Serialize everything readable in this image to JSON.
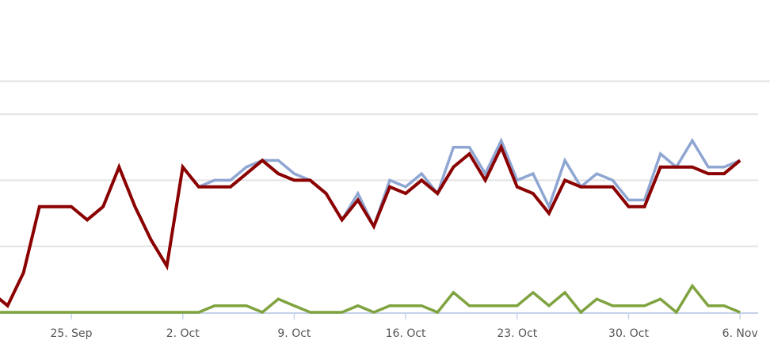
{
  "chart_data": {
    "type": "line",
    "title": "",
    "xlabel": "",
    "ylabel": "",
    "x": [
      "Sep 20",
      "Sep 21",
      "Sep 22",
      "Sep 23",
      "Sep 24",
      "Sep 25",
      "Sep 26",
      "Sep 27",
      "Sep 28",
      "Sep 29",
      "Sep 30",
      "Oct 1",
      "Oct 2",
      "Oct 3",
      "Oct 4",
      "Oct 5",
      "Oct 6",
      "Oct 7",
      "Oct 8",
      "Oct 9",
      "Oct 10",
      "Oct 11",
      "Oct 12",
      "Oct 13",
      "Oct 14",
      "Oct 15",
      "Oct 16",
      "Oct 17",
      "Oct 18",
      "Oct 19",
      "Oct 20",
      "Oct 21",
      "Oct 22",
      "Oct 23",
      "Oct 24",
      "Oct 25",
      "Oct 26",
      "Oct 27",
      "Oct 28",
      "Oct 29",
      "Oct 30",
      "Oct 31",
      "Nov 1",
      "Nov 2",
      "Nov 3",
      "Nov 4",
      "Nov 5",
      "Nov 6"
    ],
    "x_tick_labels": [
      "25. Sep",
      "2. Oct",
      "9. Oct",
      "16. Oct",
      "23. Oct",
      "30. Oct",
      "6. Nov"
    ],
    "x_tick_dates": [
      "Sep 25",
      "Oct 2",
      "Oct 9",
      "Oct 16",
      "Oct 23",
      "Oct 30",
      "Nov 6"
    ],
    "ylim": [
      0,
      35
    ],
    "y_gridlines": [
      10,
      20,
      30,
      35
    ],
    "grid": true,
    "legend": "none",
    "series": [
      {
        "color": "#8fa6d2",
        "values": [
          3,
          1,
          6,
          16,
          16,
          16,
          14,
          16,
          22,
          16,
          11,
          7,
          22,
          19,
          20,
          20,
          22,
          23,
          23,
          21,
          20,
          18,
          14,
          18,
          13,
          20,
          19,
          21,
          18,
          25,
          25,
          21,
          26,
          20,
          21,
          16,
          23,
          19,
          21,
          20,
          17,
          17,
          24,
          22,
          26,
          22,
          22,
          23
        ]
      },
      {
        "color": "#8b0000",
        "values": [
          3,
          1,
          6,
          16,
          16,
          16,
          14,
          16,
          22,
          16,
          11,
          7,
          22,
          19,
          19,
          19,
          21,
          23,
          21,
          20,
          20,
          18,
          14,
          17,
          13,
          19,
          18,
          20,
          18,
          22,
          24,
          20,
          25,
          19,
          18,
          15,
          20,
          19,
          19,
          19,
          16,
          16,
          22,
          22,
          22,
          21,
          21,
          23
        ]
      },
      {
        "color": "#7fa33f",
        "values": [
          0,
          0,
          0,
          0,
          0,
          0,
          0,
          0,
          0,
          0,
          0,
          0,
          0,
          0,
          1,
          1,
          1,
          0,
          2,
          1,
          0,
          0,
          0,
          1,
          0,
          1,
          1,
          1,
          0,
          3,
          1,
          1,
          1,
          1,
          3,
          1,
          3,
          0,
          2,
          1,
          1,
          1,
          2,
          0,
          4,
          1,
          1,
          0
        ]
      }
    ]
  }
}
